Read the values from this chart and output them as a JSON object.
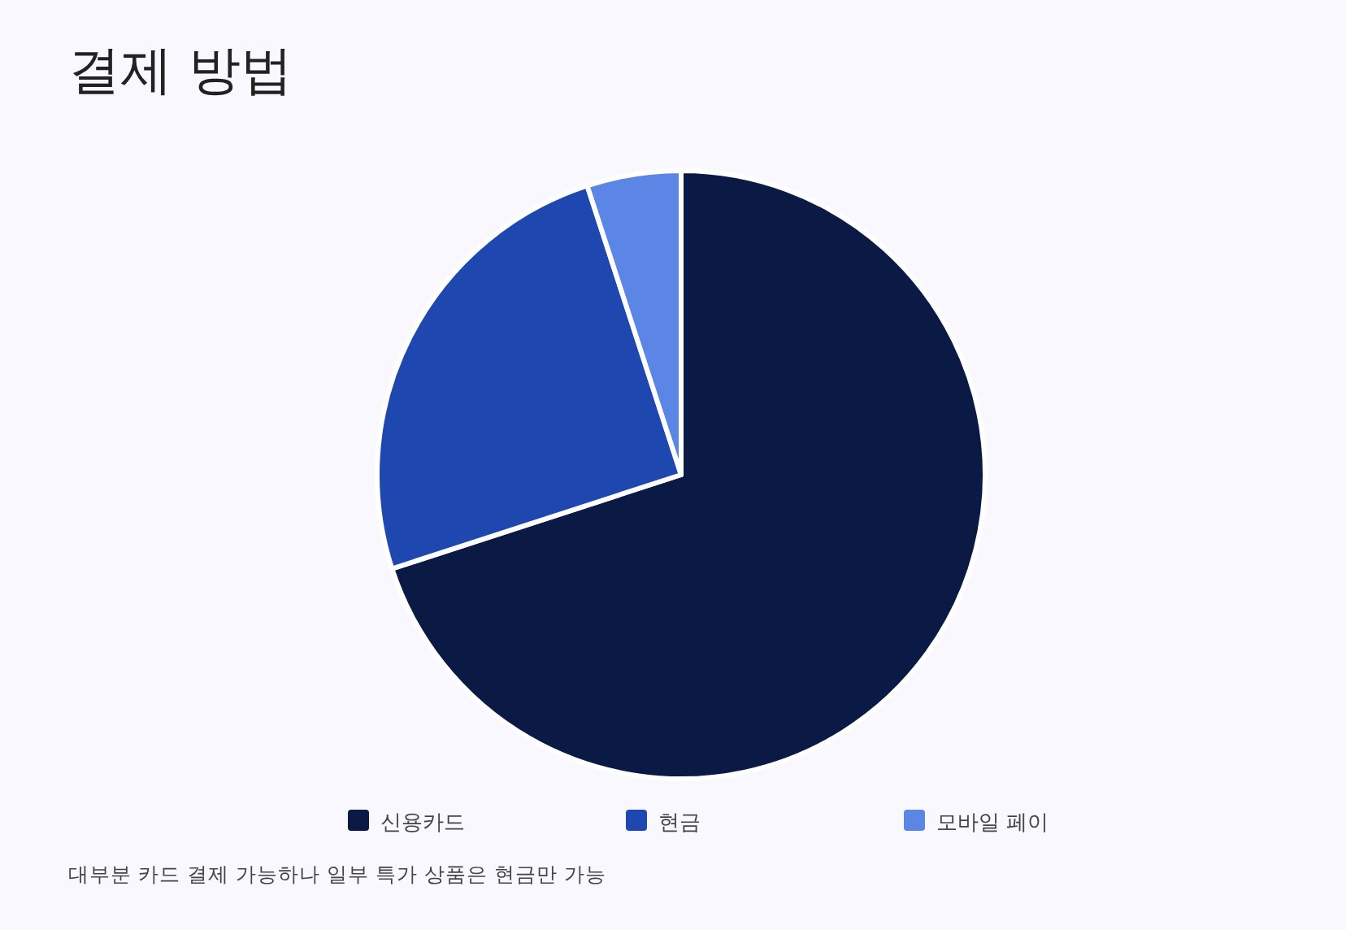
{
  "chart_data": {
    "type": "pie",
    "title": "결제 방법",
    "categories": [
      "신용카드",
      "현금",
      "모바일 페이"
    ],
    "values": [
      70,
      25,
      5
    ],
    "colors": [
      "#0a1a44",
      "#1e47b0",
      "#5b86e5"
    ],
    "legend": "bottom",
    "annotations": [
      "대부분 카드 결제 가능하나 일부 특가 상품은 현금만 가능"
    ]
  }
}
